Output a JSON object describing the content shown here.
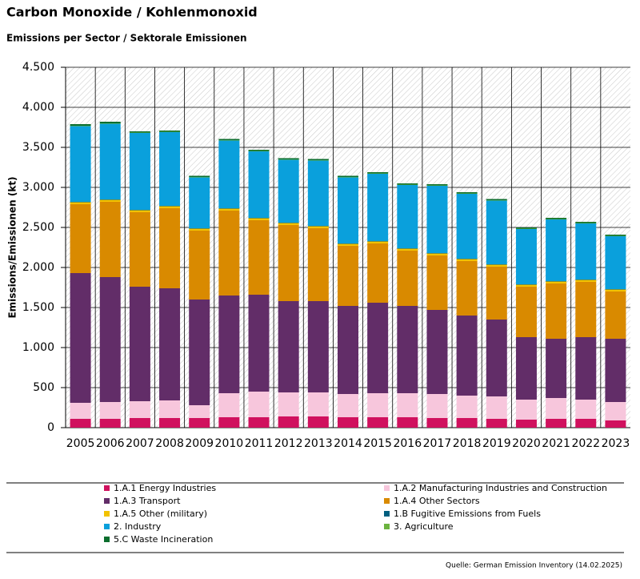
{
  "chart_data": {
    "type": "stacked-bar",
    "title": "Carbon Monoxide / Kohlenmonoxid",
    "subtitle": "Emissions per Sector / Sektorale Emissionen",
    "y_label": "Emissions/Emissionen (kt)",
    "source": "Quelle: German Emission Inventory (14.02.2025)",
    "categories": [
      "2005",
      "2006",
      "2007",
      "2008",
      "2009",
      "2010",
      "2011",
      "2012",
      "2013",
      "2014",
      "2015",
      "2016",
      "2017",
      "2018",
      "2019",
      "2020",
      "2021",
      "2022",
      "2023"
    ],
    "ylim": [
      0,
      4500
    ],
    "yticks": [
      0,
      500,
      {
        "value": 1000,
        "label": "1.000"
      },
      {
        "value": 1500,
        "label": "1.500"
      },
      {
        "value": 2000,
        "label": "2.000"
      },
      {
        "value": 2500,
        "label": "2.500"
      },
      {
        "value": 3000,
        "label": "3.000"
      },
      {
        "value": 3500,
        "label": "3.500"
      },
      {
        "value": 4000,
        "label": "4.000"
      },
      {
        "value": 4500,
        "label": "4.500"
      }
    ],
    "grid": true,
    "series": [
      {
        "name": "1.A.1 Energy Industries",
        "color": "#d0115e",
        "values": [
          110,
          110,
          120,
          120,
          120,
          130,
          130,
          140,
          140,
          130,
          130,
          130,
          120,
          120,
          110,
          100,
          110,
          110,
          90
        ]
      },
      {
        "name": "1.A.2 Manufacturing Industries and Construction",
        "color": "#f7c6dc",
        "values": [
          200,
          210,
          210,
          220,
          160,
          300,
          320,
          300,
          300,
          290,
          300,
          300,
          300,
          280,
          280,
          250,
          260,
          240,
          230
        ]
      },
      {
        "name": "1.A.3 Transport",
        "color": "#622d68",
        "values": [
          1620,
          1560,
          1430,
          1400,
          1320,
          1220,
          1210,
          1140,
          1140,
          1100,
          1130,
          1090,
          1050,
          1000,
          960,
          780,
          740,
          780,
          790
        ]
      },
      {
        "name": "1.A.4 Other Sectors",
        "color": "#d98a00",
        "values": [
          860,
          940,
          930,
          1000,
          860,
          1060,
          930,
          950,
          910,
          750,
          740,
          690,
          680,
          680,
          660,
          630,
          690,
          690,
          590
        ]
      },
      {
        "name": "1.A.5 Other (military)",
        "color": "#f2c200",
        "values": [
          25,
          25,
          25,
          25,
          25,
          25,
          25,
          25,
          25,
          25,
          25,
          25,
          25,
          25,
          25,
          25,
          25,
          25,
          25
        ]
      },
      {
        "name": "1.B Fugitive Emissions from Fuels",
        "color": "#005f7f",
        "values": [
          5,
          5,
          5,
          5,
          5,
          5,
          5,
          5,
          5,
          5,
          5,
          5,
          5,
          5,
          5,
          5,
          5,
          5,
          5
        ]
      },
      {
        "name": "2. Industry",
        "color": "#0aa0dc",
        "values": [
          945,
          945,
          960,
          920,
          635,
          845,
          830,
          785,
          815,
          825,
          840,
          790,
          840,
          810,
          795,
          690,
          770,
          700,
          660
        ]
      },
      {
        "name": "3. Agriculture",
        "color": "#6cb33f",
        "values": [
          5,
          5,
          5,
          5,
          5,
          5,
          5,
          5,
          5,
          5,
          5,
          5,
          5,
          5,
          5,
          5,
          5,
          5,
          5
        ]
      },
      {
        "name": "5.C Waste Incineration",
        "color": "#0b6e2e",
        "values": [
          20,
          20,
          15,
          15,
          15,
          15,
          15,
          15,
          15,
          15,
          15,
          15,
          15,
          15,
          15,
          15,
          15,
          15,
          15
        ]
      }
    ]
  }
}
